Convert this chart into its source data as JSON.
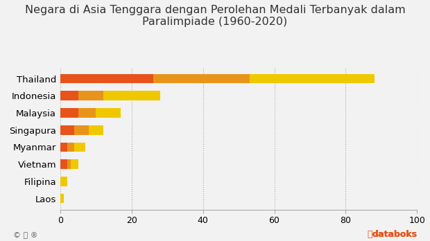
{
  "title": "Negara di Asia Tenggara dengan Perolehan Medali Terbanyak dalam\nParalimpiade (1960-2020)",
  "countries": [
    "Laos",
    "Filipina",
    "Vietnam",
    "Myanmar",
    "Singapura",
    "Malaysia",
    "Indonesia",
    "Thailand"
  ],
  "gold": [
    0,
    0,
    2,
    2,
    4,
    5,
    5,
    26
  ],
  "silver": [
    0,
    0,
    1,
    2,
    4,
    5,
    7,
    27
  ],
  "bronze": [
    1,
    2,
    2,
    3,
    4,
    7,
    16,
    35
  ],
  "color_gold": "#E8531A",
  "color_silver": "#E8941A",
  "color_bronze": "#F0C800",
  "bg_color": "#F2F2F2",
  "xlim": [
    0,
    100
  ],
  "xticks": [
    0,
    20,
    40,
    60,
    80,
    100
  ],
  "title_fontsize": 11.5,
  "label_fontsize": 9.5,
  "tick_fontsize": 9
}
